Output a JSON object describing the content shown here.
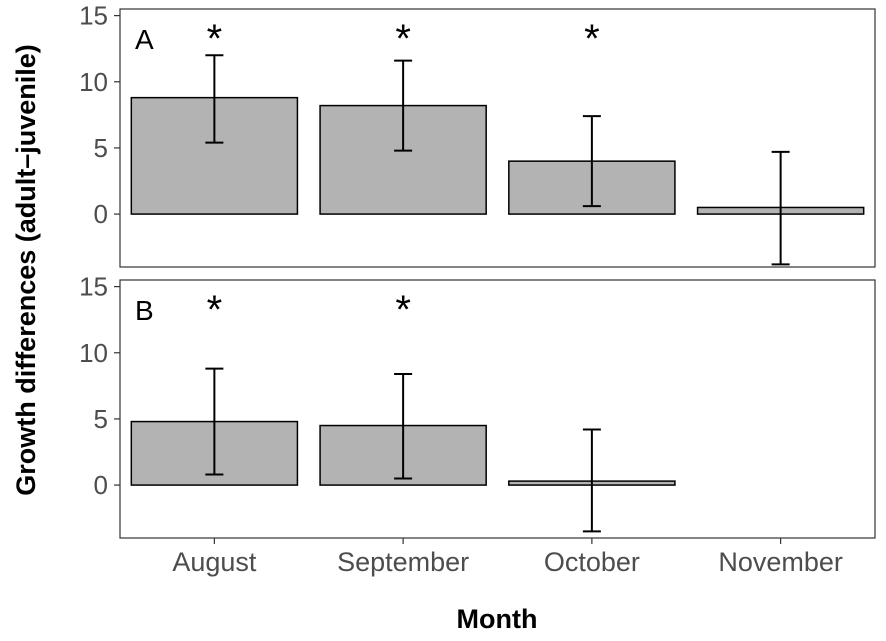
{
  "chart_data": {
    "type": "bar",
    "xlabel": "Month",
    "ylabel": "Growth differences (adult–juvenile)",
    "categories": [
      "August",
      "September",
      "October",
      "November"
    ],
    "ylim": [
      -4,
      15.5
    ],
    "yticks": [
      0,
      5,
      10,
      15
    ],
    "grid": false,
    "bar_fill": "#b3b3b3",
    "panels": [
      {
        "label": "A",
        "values": [
          8.8,
          8.2,
          4.0,
          0.5
        ],
        "error_upper": [
          12.0,
          11.6,
          7.4,
          4.7
        ],
        "error_lower": [
          5.4,
          4.8,
          0.6,
          -3.8
        ],
        "significant": [
          "*",
          "*",
          "*",
          ""
        ]
      },
      {
        "label": "B",
        "values": [
          4.8,
          4.5,
          0.3,
          null
        ],
        "error_upper": [
          8.8,
          8.4,
          4.2,
          null
        ],
        "error_lower": [
          0.8,
          0.5,
          -3.5,
          null
        ],
        "significant": [
          "*",
          "*",
          "",
          ""
        ]
      }
    ]
  }
}
